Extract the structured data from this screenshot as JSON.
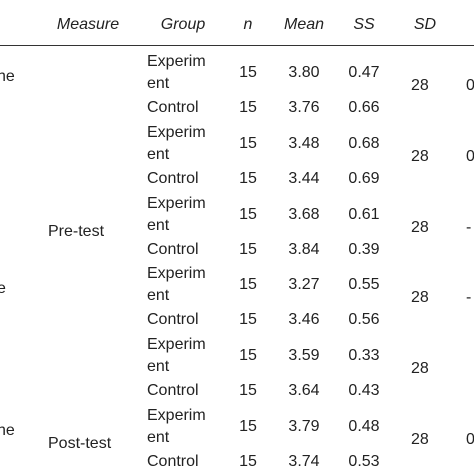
{
  "table": {
    "columns": [
      "Measure",
      "Group",
      "n",
      "Mean",
      "SS",
      "SD"
    ],
    "groups": [
      {
        "left": "he",
        "rows": [
          {
            "group": "Experiment",
            "n": "15",
            "mean": "3.80",
            "ss": "0.47"
          },
          {
            "group": "Control",
            "n": "15",
            "mean": "3.76",
            "ss": "0.66"
          }
        ],
        "sd": "28",
        "right": "0"
      },
      {
        "rows": [
          {
            "group": "Experiment",
            "n": "15",
            "mean": "3.48",
            "ss": "0.68"
          },
          {
            "group": "Control",
            "n": "15",
            "mean": "3.44",
            "ss": "0.69"
          }
        ],
        "sd": "28",
        "right": "0"
      },
      {
        "measure": "Pre-test",
        "rows": [
          {
            "group": "Experiment",
            "n": "15",
            "mean": "3.68",
            "ss": "0.61"
          },
          {
            "group": "Control",
            "n": "15",
            "mean": "3.84",
            "ss": "0.39"
          }
        ],
        "sd": "28",
        "right": "-"
      },
      {
        "left": "e",
        "rows": [
          {
            "group": "Experiment",
            "n": "15",
            "mean": "3.27",
            "ss": "0.55"
          },
          {
            "group": "Control",
            "n": "15",
            "mean": "3.46",
            "ss": "0.56"
          }
        ],
        "sd": "28",
        "right": "-"
      },
      {
        "rows": [
          {
            "group": "Experiment",
            "n": "15",
            "mean": "3.59",
            "ss": "0.33"
          },
          {
            "group": "Control",
            "n": "15",
            "mean": "3.64",
            "ss": "0.43"
          }
        ],
        "sd": "28"
      },
      {
        "left": "he",
        "measure": "Post-test",
        "rows": [
          {
            "group": "Experiment",
            "n": "15",
            "mean": "3.79",
            "ss": "0.48"
          },
          {
            "group": "Control",
            "n": "15",
            "mean": "3.74",
            "ss": "0.53"
          }
        ],
        "sd": "28",
        "right": "0"
      }
    ]
  }
}
